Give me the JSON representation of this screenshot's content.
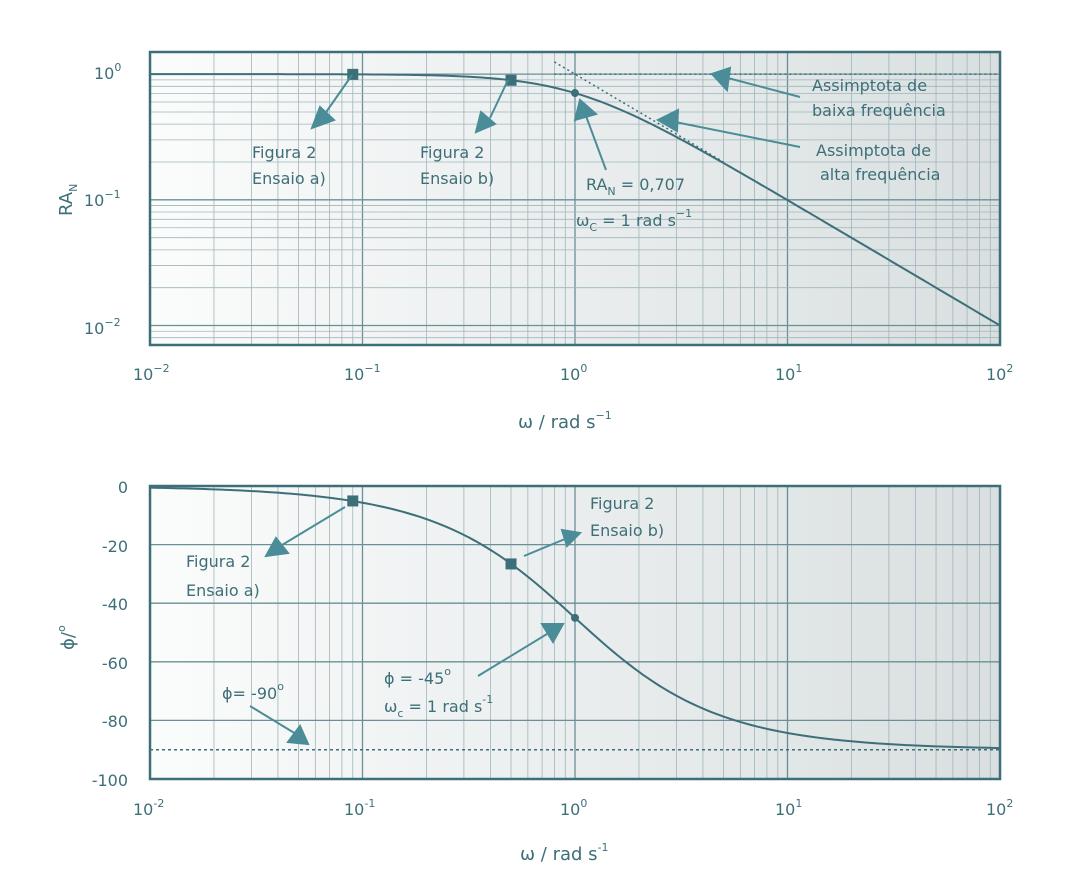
{
  "colors": {
    "line": "#3d6f78",
    "frame": "#3d6f78",
    "grid_major": "#6a8f96",
    "grid_minor": "#9fb6ba",
    "text": "#3d6f78",
    "arrow": "#4a8c97",
    "plot_bg_left": "#fbfcfc",
    "plot_bg_right": "#d9dfe0"
  },
  "chart_data": [
    {
      "type": "line",
      "xscale": "log",
      "yscale": "log",
      "xlim": [
        0.01,
        100
      ],
      "ylim": [
        0.007,
        1.5
      ],
      "xlabel": "ω / rad s",
      "xlabel_sup": "−1",
      "ylabel": "RA",
      "ylabel_sub": "N",
      "x_ticks": [
        {
          "value": 0.01,
          "base": "10",
          "exp": "−2"
        },
        {
          "value": 0.1,
          "base": "10",
          "exp": "−1"
        },
        {
          "value": 1,
          "base": "10",
          "exp": "0"
        },
        {
          "value": 10,
          "base": "10",
          "exp": "1"
        },
        {
          "value": 100,
          "base": "10",
          "exp": "2"
        }
      ],
      "y_ticks": [
        {
          "value": 1,
          "base": "10",
          "exp": "0"
        },
        {
          "value": 0.1,
          "base": "10",
          "exp": "−1"
        },
        {
          "value": 0.01,
          "base": "10",
          "exp": "−2"
        }
      ],
      "grid": true,
      "curve": "RA_N = 1/sqrt(1 + ω²)",
      "curve_points": [
        [
          0.01,
          1.0
        ],
        [
          0.02,
          0.9998
        ],
        [
          0.05,
          0.9988
        ],
        [
          0.1,
          0.995
        ],
        [
          0.2,
          0.981
        ],
        [
          0.3,
          0.958
        ],
        [
          0.5,
          0.894
        ],
        [
          0.7,
          0.819
        ],
        [
          1,
          0.707
        ],
        [
          1.5,
          0.555
        ],
        [
          2,
          0.447
        ],
        [
          3,
          0.316
        ],
        [
          5,
          0.196
        ],
        [
          7,
          0.141
        ],
        [
          10,
          0.0995
        ],
        [
          20,
          0.0499
        ],
        [
          50,
          0.02
        ],
        [
          100,
          0.01
        ]
      ],
      "markers": [
        {
          "shape": "square",
          "x": 0.09,
          "y": 0.996
        },
        {
          "shape": "square",
          "x": 0.5,
          "y": 0.894
        },
        {
          "shape": "circle",
          "x": 1.0,
          "y": 0.707
        }
      ],
      "asymptote_low": {
        "y": 1,
        "x_from": 0.8,
        "x_to": 100
      },
      "asymptote_high": {
        "x_from": 0.8,
        "x_to": 5
      },
      "annotations": [
        {
          "id": "fig2a",
          "lines": [
            "Figura 2",
            "Ensaio a)"
          ]
        },
        {
          "id": "fig2b",
          "lines": [
            "Figura 2",
            "Ensaio b)"
          ]
        },
        {
          "id": "ran",
          "line1": "RA",
          "line1_sub": "N",
          "line1_rest": " = 0,707",
          "line2": "ω",
          "line2_sub": "C",
          "line2_rest": " = 1 rad s",
          "line2_sup": "−1"
        },
        {
          "id": "low",
          "lines": [
            "Assimptota de",
            "baixa frequência"
          ]
        },
        {
          "id": "high",
          "lines": [
            "Assimptota de",
            "alta frequência"
          ]
        }
      ]
    },
    {
      "type": "line",
      "xscale": "log",
      "xlim": [
        0.01,
        100
      ],
      "ylim": [
        -100,
        0
      ],
      "xlabel": "ω / rad s",
      "xlabel_sup": "-1",
      "ylabel": "ϕ/",
      "ylabel_sup": "o",
      "x_ticks": [
        {
          "value": 0.01,
          "base": "10",
          "exp": "-2"
        },
        {
          "value": 0.1,
          "base": "10",
          "exp": "-1"
        },
        {
          "value": 1,
          "base": "10",
          "exp": "0"
        },
        {
          "value": 10,
          "base": "10",
          "exp": "1"
        },
        {
          "value": 100,
          "base": "10",
          "exp": "2"
        }
      ],
      "y_ticks": [
        "0",
        "-20",
        "-40",
        "-60",
        "-80",
        "-100"
      ],
      "y_tick_values": [
        0,
        -20,
        -40,
        -60,
        -80,
        -100
      ],
      "grid": true,
      "curve": "ϕ = -arctan(ω)",
      "curve_points": [
        [
          0.01,
          -0.57
        ],
        [
          0.02,
          -1.15
        ],
        [
          0.05,
          -2.86
        ],
        [
          0.1,
          -5.71
        ],
        [
          0.2,
          -11.3
        ],
        [
          0.3,
          -16.7
        ],
        [
          0.5,
          -26.6
        ],
        [
          0.7,
          -35.0
        ],
        [
          1,
          -45.0
        ],
        [
          1.5,
          -56.3
        ],
        [
          2,
          -63.4
        ],
        [
          3,
          -71.6
        ],
        [
          5,
          -78.7
        ],
        [
          7,
          -81.9
        ],
        [
          10,
          -84.3
        ],
        [
          20,
          -87.1
        ],
        [
          50,
          -88.9
        ],
        [
          100,
          -89.4
        ]
      ],
      "markers": [
        {
          "shape": "square",
          "x": 0.09,
          "y": -5.1
        },
        {
          "shape": "square",
          "x": 0.5,
          "y": -26.6
        },
        {
          "shape": "circle",
          "x": 1.0,
          "y": -45.0
        }
      ],
      "asymptote": {
        "y": -90
      },
      "annotations": [
        {
          "id": "fig2a",
          "lines": [
            "Figura 2",
            "Ensaio a)"
          ]
        },
        {
          "id": "fig2b",
          "lines": [
            "Figura 2",
            "Ensaio b)"
          ]
        },
        {
          "id": "phi45",
          "line1": "ϕ = -45",
          "line1_sup": "o",
          "line2": "ω",
          "line2_sub": "c",
          "line2_rest": " = 1 rad s",
          "line2_sup": "-1"
        },
        {
          "id": "phi90",
          "line1": "ϕ= -90",
          "line1_sup": "o"
        }
      ]
    }
  ]
}
